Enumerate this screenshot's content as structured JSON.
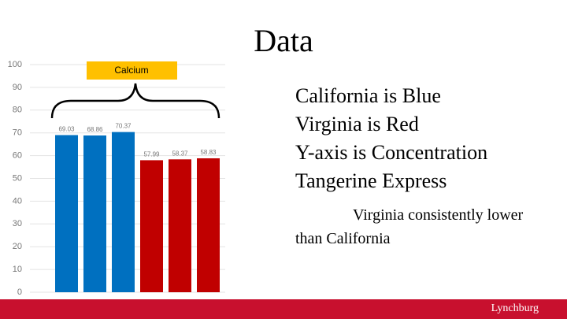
{
  "chart_data": {
    "type": "bar",
    "annotation": "Calcium",
    "values": [
      69.03,
      68.86,
      70.37,
      57.99,
      58.37,
      58.83
    ],
    "colors": [
      "#0070c0",
      "#0070c0",
      "#0070c0",
      "#c00000",
      "#c00000",
      "#c00000"
    ],
    "ylim": [
      0,
      100
    ],
    "yticks": [
      0,
      10,
      20,
      30,
      40,
      50,
      60,
      70,
      80,
      90,
      100
    ],
    "grid": true
  },
  "slide": {
    "title": "Data",
    "bullets": [
      "California is Blue",
      "Virginia is Red",
      "Y-axis is Concentration",
      "Tangerine Express"
    ],
    "note": "Virginia consistently lower than California",
    "logo": "Lynchburg"
  }
}
